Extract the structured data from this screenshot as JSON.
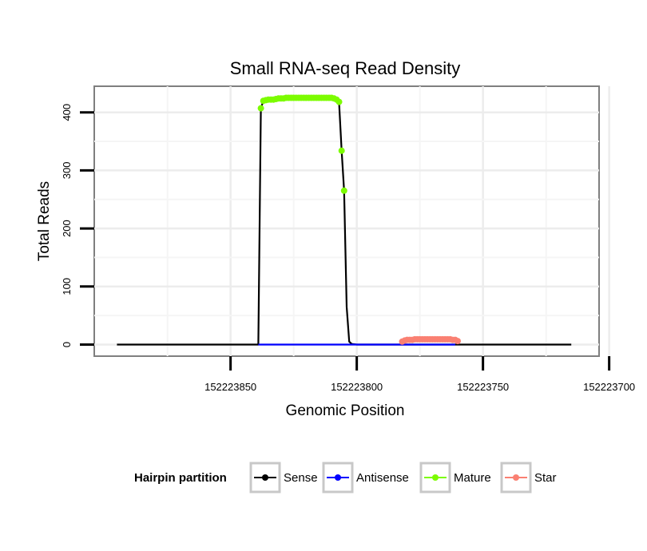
{
  "chart_data": {
    "type": "line",
    "title": "Small RNA-seq Read Density",
    "xlabel": "Genomic Position",
    "ylabel": "Total Reads",
    "x_reversed": true,
    "xlim": [
      152223904,
      152223704
    ],
    "ylim": [
      -20,
      445
    ],
    "x_ticks": [
      152223850,
      152223800,
      152223750,
      152223700
    ],
    "x_tick_labels": [
      "152223850",
      "152223800",
      "152223750",
      "152223700"
    ],
    "y_ticks": [
      0,
      100,
      200,
      300,
      400
    ],
    "y_tick_labels": [
      "0",
      "100",
      "200",
      "300",
      "400"
    ],
    "grid": true,
    "legend": {
      "title": "Hairpin partition",
      "position": "bottom",
      "entries": [
        {
          "name": "Sense",
          "color": "#000000"
        },
        {
          "name": "Antisense",
          "color": "#0000ff"
        },
        {
          "name": "Mature",
          "color": "#7cfc00"
        },
        {
          "name": "Star",
          "color": "#fa8072"
        }
      ]
    },
    "series": [
      {
        "name": "Sense",
        "color": "#000000",
        "x": [
          152223895,
          152223839,
          152223838,
          152223837,
          152223836,
          152223835,
          152223834,
          152223832,
          152223830,
          152223828,
          152223826,
          152223824,
          152223822,
          152223820,
          152223818,
          152223816,
          152223814,
          152223812,
          152223810,
          152223808,
          152223807,
          152223806,
          152223805,
          152223804,
          152223803,
          152223802,
          152223800,
          152223715
        ],
        "y": [
          0,
          0,
          407,
          420,
          422,
          422,
          424,
          424,
          425,
          425,
          425,
          425,
          425,
          425,
          425,
          425,
          425,
          425,
          424,
          420,
          417,
          334,
          265,
          65,
          5,
          1,
          0,
          0
        ]
      },
      {
        "name": "Antisense",
        "color": "#0000ff",
        "x": [
          152223839,
          152223800,
          152223780,
          152223761
        ],
        "y": [
          0,
          0,
          0,
          0
        ]
      },
      {
        "name": "Mature",
        "color": "#7cfc00",
        "x": [
          152223838,
          152223837,
          152223836,
          152223835,
          152223834,
          152223833,
          152223832,
          152223831,
          152223830,
          152223829,
          152223828,
          152223827,
          152223826,
          152223825,
          152223824,
          152223823,
          152223822,
          152223821,
          152223820,
          152223819,
          152223818,
          152223817,
          152223816,
          152223815,
          152223814,
          152223813,
          152223812,
          152223811,
          152223810,
          152223809,
          152223808,
          152223807,
          152223806,
          152223805
        ],
        "y": [
          407,
          420,
          421,
          422,
          422,
          422,
          423,
          424,
          424,
          424,
          425,
          425,
          425,
          425,
          425,
          425,
          425,
          425,
          425,
          425,
          425,
          425,
          425,
          425,
          425,
          425,
          425,
          425,
          425,
          424,
          422,
          418,
          334,
          265
        ]
      },
      {
        "name": "Star",
        "color": "#fa8072",
        "x": [
          152223782,
          152223781,
          152223780,
          152223779,
          152223778,
          152223777,
          152223776,
          152223775,
          152223774,
          152223773,
          152223772,
          152223771,
          152223770,
          152223769,
          152223768,
          152223767,
          152223766,
          152223765,
          152223764,
          152223763,
          152223762,
          152223761,
          152223760
        ],
        "y": [
          5,
          7,
          8,
          8,
          8,
          9,
          9,
          9,
          9,
          9,
          9,
          9,
          9,
          9,
          9,
          9,
          9,
          9,
          9,
          9,
          8,
          8,
          6
        ]
      }
    ]
  }
}
